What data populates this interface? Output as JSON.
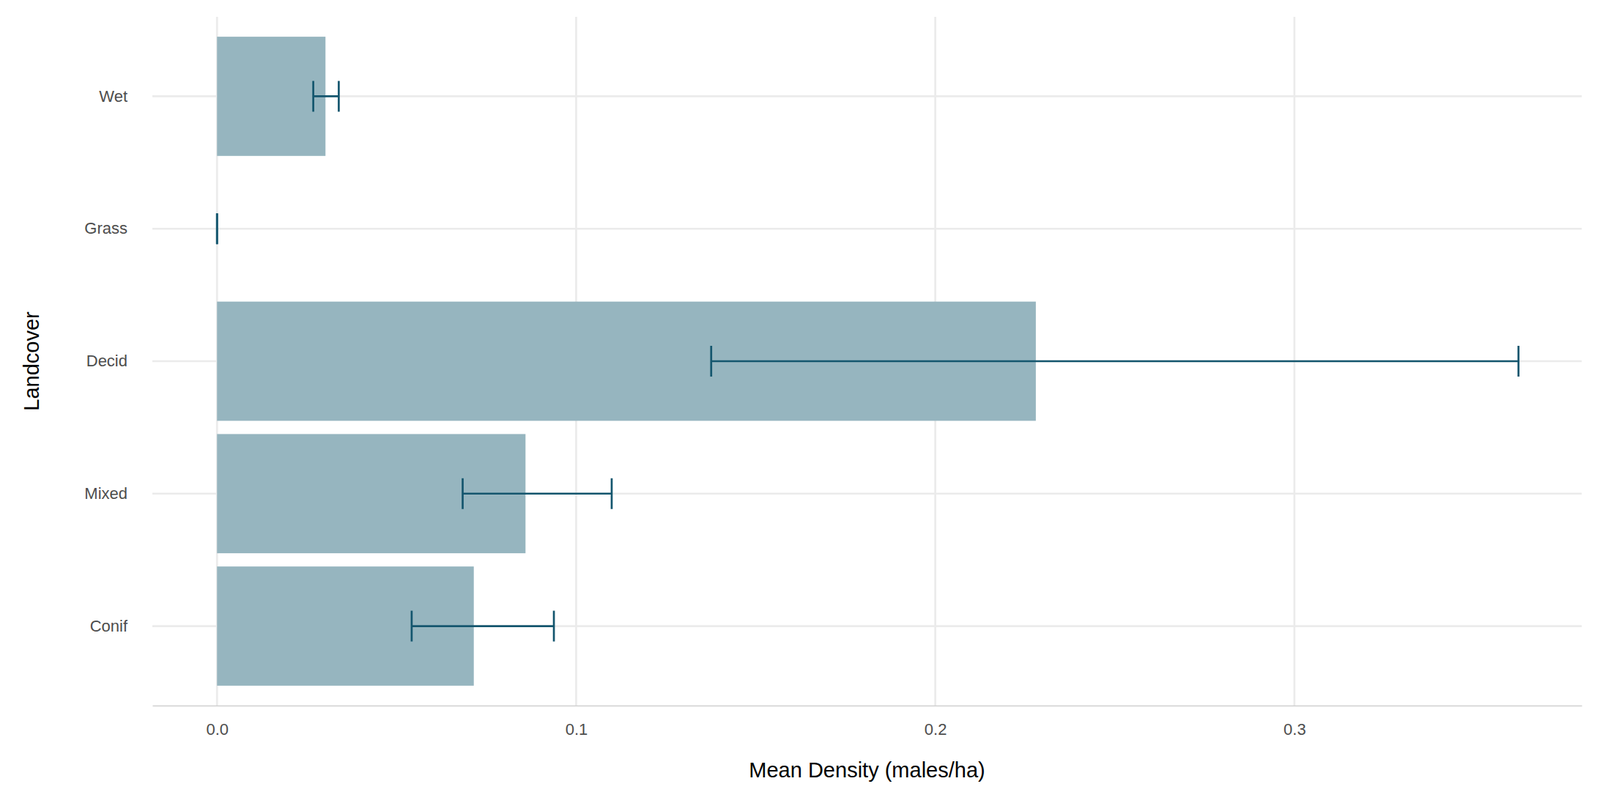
{
  "chart_data": {
    "type": "bar",
    "orientation": "horizontal",
    "x_label": "Mean Density (males/ha)",
    "y_label": "Landcover",
    "categories": [
      "Conif",
      "Mixed",
      "Decid",
      "Grass",
      "Wet"
    ],
    "values": [
      0.0715,
      0.0859,
      0.228,
      0,
      0.0302
    ],
    "lower": [
      0.0542,
      0.0684,
      0.1376,
      0,
      0.0268
    ],
    "upper": [
      0.0938,
      0.1099,
      0.3624,
      0,
      0.0339
    ],
    "color": "#96b5bf",
    "xlim": [
      -0.018,
      0.38
    ],
    "xticks": [
      {
        "value": 0,
        "label": "0.0"
      },
      0.1,
      0.2,
      0.3
    ],
    "grid": true
  }
}
